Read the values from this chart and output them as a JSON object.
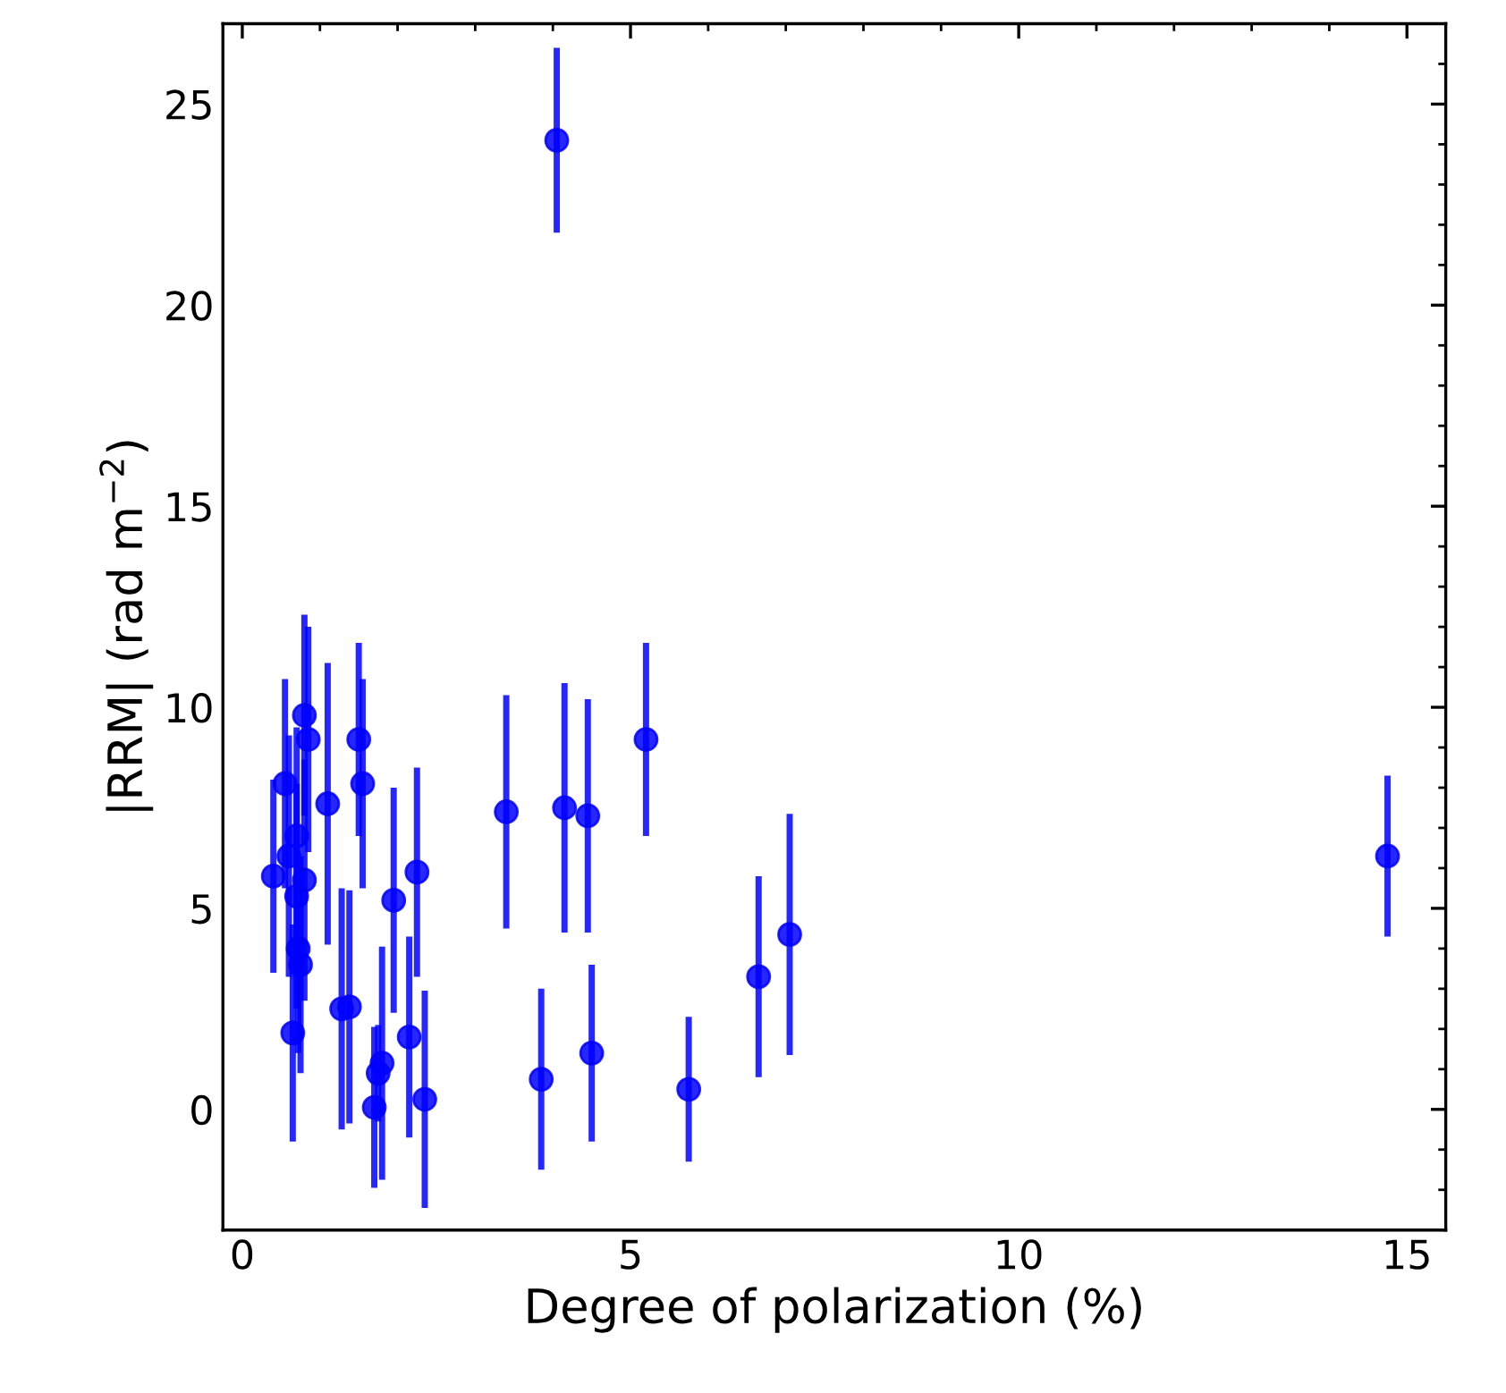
{
  "chart_data": {
    "type": "scatter",
    "xlabel": "Degree of polarization (%)",
    "ylabel": "|RRM| (rad m$^{−2}$)",
    "xlim": [
      -0.25,
      15.5
    ],
    "ylim": [
      -3,
      27
    ],
    "xticks": [
      0,
      5,
      10,
      15
    ],
    "yticks": [
      0,
      5,
      10,
      15,
      20,
      25
    ],
    "grid": false,
    "legend": false,
    "marker": "circle",
    "series": [
      {
        "color": "#0000ff",
        "x": [
          0.4,
          0.55,
          0.6,
          0.65,
          0.7,
          0.7,
          0.72,
          0.75,
          0.8,
          0.85,
          0.8,
          1.1,
          1.28,
          1.38,
          1.5,
          1.55,
          1.7,
          1.75,
          1.8,
          1.95,
          2.15,
          2.25,
          2.35,
          3.4,
          3.85,
          4.05,
          4.15,
          4.45,
          4.5,
          5.2,
          5.75,
          6.65,
          7.05,
          14.75
        ],
        "values": [
          5.8,
          8.1,
          6.3,
          1.9,
          6.8,
          5.3,
          4.0,
          3.6,
          9.8,
          9.2,
          5.7,
          7.6,
          2.5,
          2.55,
          9.2,
          8.1,
          0.05,
          0.9,
          1.15,
          5.2,
          1.8,
          5.9,
          0.25,
          7.4,
          0.75,
          24.1,
          7.5,
          7.3,
          1.4,
          9.2,
          0.5,
          3.3,
          4.35,
          6.3
        ],
        "errors": [
          2.4,
          2.6,
          3.0,
          2.7,
          2.7,
          2.8,
          2.6,
          2.7,
          2.5,
          2.8,
          3.0,
          3.5,
          3.0,
          2.9,
          2.4,
          2.6,
          2.0,
          1.2,
          2.9,
          2.8,
          2.5,
          2.6,
          2.7,
          2.9,
          2.25,
          2.3,
          3.1,
          2.9,
          2.2,
          2.4,
          1.8,
          2.5,
          3.0,
          2.0
        ]
      }
    ]
  }
}
